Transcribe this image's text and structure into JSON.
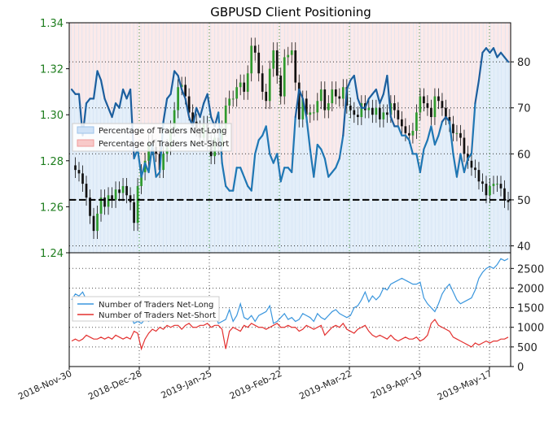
{
  "chart_data": [
    {
      "type": "line",
      "title": "GBPUSD Client Positioning",
      "subtype": "candlestick + positioning overlay",
      "x_labels": [
        "2018-Nov-30",
        "2018-Dec-28",
        "2019-Jan-25",
        "2019-Feb-22",
        "2019-Mar-22",
        "2019-Apr-19",
        "2019-May-17"
      ],
      "price_axis": {
        "ticks": [
          1.24,
          1.26,
          1.28,
          1.3,
          1.32,
          1.34
        ],
        "ylim": [
          1.24,
          1.34
        ],
        "color": "#1e7d1e"
      },
      "percent_axis": {
        "ticks": [
          40,
          50,
          60,
          70,
          80
        ],
        "ylim": [
          38.5,
          88.5
        ]
      },
      "reference_line": {
        "label": "",
        "value": 50
      },
      "series": [
        {
          "name": "Percentage of Traders Net-Long",
          "color": "#1f77b4",
          "values": [
            74,
            73,
            73,
            64,
            71,
            72,
            72,
            78,
            76,
            72,
            70,
            68,
            71,
            70,
            74,
            72,
            74,
            59,
            61,
            55,
            58,
            56,
            62,
            55,
            56,
            67,
            72,
            73,
            78,
            77,
            74,
            72,
            68,
            66,
            70,
            68,
            71,
            73,
            68,
            66,
            69,
            58,
            53,
            52,
            52,
            57,
            57,
            55,
            53,
            52,
            60,
            63,
            64,
            66,
            60,
            58,
            60,
            54,
            57,
            57,
            56,
            68,
            74,
            72,
            68,
            61,
            55,
            62,
            61,
            59,
            55,
            56,
            57,
            59,
            64,
            74,
            76,
            77,
            72,
            70,
            70,
            72,
            73,
            74,
            71,
            73,
            77,
            68,
            66,
            66,
            64,
            64,
            63,
            60,
            60,
            56,
            61,
            63,
            66,
            62,
            64,
            67,
            68,
            67,
            60,
            55,
            60,
            56,
            59,
            60,
            71,
            76,
            82,
            83,
            82,
            83,
            81,
            82,
            81,
            80
          ]
        },
        {
          "name": "Percentage of Traders Net-Short",
          "color": "#d62728",
          "values": [
            26,
            27,
            27,
            36,
            29,
            28,
            28,
            22,
            24,
            28,
            30,
            32,
            29,
            30,
            26,
            28,
            26,
            41,
            39,
            45,
            42,
            44,
            38,
            45,
            44,
            33,
            28,
            27,
            22,
            23,
            26,
            28,
            32,
            34,
            30,
            32,
            29,
            27,
            32,
            34,
            31,
            42,
            47,
            48,
            48,
            43,
            43,
            45,
            47,
            48,
            40,
            37,
            36,
            34,
            40,
            42,
            40,
            46,
            43,
            43,
            44,
            32,
            26,
            28,
            32,
            39,
            45,
            38,
            39,
            41,
            45,
            44,
            43,
            41,
            36,
            26,
            24,
            23,
            28,
            30,
            30,
            28,
            27,
            26,
            29,
            27,
            23,
            32,
            34,
            34,
            36,
            36,
            37,
            40,
            40,
            44,
            39,
            37,
            34,
            38,
            36,
            33,
            32,
            33,
            40,
            45,
            40,
            44,
            41,
            40,
            29,
            24,
            18,
            17,
            18,
            17,
            19,
            18,
            19,
            20
          ]
        }
      ],
      "close_prices": [
        1.278,
        1.276,
        1.2745,
        1.27,
        1.264,
        1.256,
        1.2495,
        1.257,
        1.264,
        1.26,
        1.265,
        1.263,
        1.2675,
        1.266,
        1.269,
        1.265,
        1.262,
        1.253,
        1.269,
        1.275,
        1.28,
        1.288,
        1.286,
        1.283,
        1.276,
        1.283,
        1.286,
        1.294,
        1.302,
        1.312,
        1.313,
        1.308,
        1.301,
        1.297,
        1.294,
        1.29,
        1.296,
        1.288,
        1.282,
        1.29,
        1.286,
        1.294,
        1.304,
        1.307,
        1.307,
        1.312,
        1.314,
        1.31,
        1.318,
        1.33,
        1.327,
        1.318,
        1.31,
        1.306,
        1.32,
        1.328,
        1.317,
        1.308,
        1.325,
        1.326,
        1.328,
        1.314,
        1.298,
        1.307,
        1.3,
        1.301,
        1.301,
        1.306,
        1.311,
        1.302,
        1.305,
        1.311,
        1.308,
        1.307,
        1.312,
        1.304,
        1.302,
        1.3,
        1.299,
        1.305,
        1.302,
        1.303,
        1.3,
        1.303,
        1.298,
        1.301,
        1.3,
        1.305,
        1.302,
        1.298,
        1.295,
        1.292,
        1.291,
        1.293,
        1.301,
        1.308,
        1.305,
        1.303,
        1.299,
        1.308,
        1.306,
        1.303,
        1.299,
        1.296,
        1.292,
        1.292,
        1.29,
        1.283,
        1.28,
        1.277,
        1.276,
        1.271,
        1.27,
        1.265,
        1.269,
        1.27,
        1.27,
        1.268,
        1.263,
        1.262
      ]
    },
    {
      "type": "line",
      "series": [
        {
          "name": "Number of Traders Net-Long",
          "color": "#3a96dd",
          "values": [
            1700,
            1850,
            1800,
            1900,
            1700,
            1650,
            1450,
            1350,
            1300,
            1400,
            1350,
            1300,
            1500,
            1400,
            1350,
            1250,
            1300,
            1100,
            1150,
            1100,
            1200,
            1150,
            1250,
            1300,
            1200,
            1150,
            1250,
            1350,
            1300,
            1400,
            1300,
            1250,
            1200,
            1250,
            1300,
            1200,
            1150,
            1250,
            1300,
            1350,
            1100,
            1150,
            1200,
            1450,
            1150,
            1300,
            1600,
            1250,
            1200,
            1300,
            1150,
            1300,
            1350,
            1400,
            1550,
            1100,
            1150,
            1250,
            1350,
            1200,
            1250,
            1150,
            1200,
            1350,
            1300,
            1250,
            1150,
            1350,
            1250,
            1200,
            1300,
            1400,
            1450,
            1350,
            1300,
            1250,
            1300,
            1500,
            1550,
            1700,
            1900,
            1650,
            1800,
            1700,
            1800,
            2000,
            1950,
            2100,
            2150,
            2200,
            2250,
            2200,
            2150,
            2100,
            2100,
            2150,
            1750,
            1600,
            1500,
            1400,
            1600,
            1850,
            2000,
            2100,
            1900,
            1700,
            1600,
            1650,
            1700,
            1750,
            1950,
            2250,
            2400,
            2500,
            2550,
            2500,
            2600,
            2750,
            2700,
            2750
          ]
        },
        {
          "name": "Number of Traders Net-Short",
          "color": "#e3302f",
          "values": [
            650,
            700,
            650,
            700,
            800,
            750,
            700,
            700,
            750,
            700,
            750,
            700,
            800,
            750,
            700,
            750,
            700,
            900,
            850,
            450,
            700,
            850,
            950,
            900,
            1000,
            950,
            1050,
            1000,
            1050,
            1050,
            950,
            1050,
            1100,
            1000,
            1000,
            1050,
            1050,
            1100,
            1000,
            1050,
            1050,
            950,
            450,
            900,
            1000,
            950,
            900,
            1050,
            1000,
            1100,
            1050,
            1000,
            1000,
            950,
            1000,
            1050,
            1100,
            1000,
            1000,
            1050,
            1000,
            1000,
            900,
            950,
            1050,
            1000,
            950,
            1000,
            1050,
            800,
            900,
            1000,
            1050,
            1000,
            1100,
            950,
            900,
            850,
            950,
            1000,
            1050,
            900,
            800,
            750,
            800,
            750,
            700,
            800,
            700,
            650,
            700,
            750,
            700,
            700,
            750,
            650,
            700,
            800,
            1100,
            1200,
            1050,
            1000,
            950,
            900,
            750,
            700,
            650,
            600,
            550,
            500,
            600,
            550,
            600,
            650,
            600,
            650,
            650,
            700,
            700,
            750
          ]
        }
      ],
      "y_ticks": [
        0,
        500,
        1000,
        1500,
        2000,
        2500
      ],
      "ylim": [
        0,
        2900
      ],
      "x_labels": [
        "2018-Nov-30",
        "2018-Dec-28",
        "2019-Jan-25",
        "2019-Feb-22",
        "2019-Mar-22",
        "2019-Apr-19",
        "2019-May-17"
      ]
    }
  ]
}
